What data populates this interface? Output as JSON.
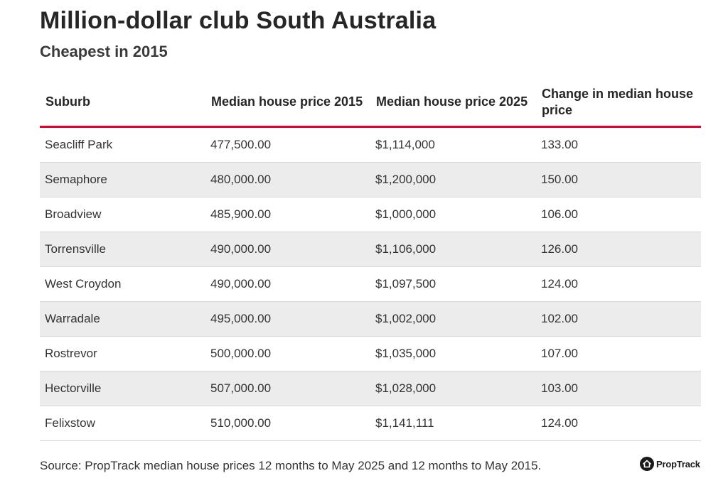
{
  "header": {
    "title": "Million-dollar club South Australia",
    "subtitle": "Cheapest in 2015"
  },
  "table": {
    "columns": [
      "Suburb",
      "Median house price 2015",
      "Median house price 2025",
      "Change in median house price"
    ],
    "rows": [
      [
        "Seacliff Park",
        "477,500.00",
        "$1,114,000",
        "133.00"
      ],
      [
        "Semaphore",
        "480,000.00",
        "$1,200,000",
        "150.00"
      ],
      [
        "Broadview",
        "485,900.00",
        "$1,000,000",
        "106.00"
      ],
      [
        "Torrensville",
        "490,000.00",
        "$1,106,000",
        "126.00"
      ],
      [
        "West Croydon",
        "490,000.00",
        "$1,097,500",
        "124.00"
      ],
      [
        "Warradale",
        "495,000.00",
        "$1,002,000",
        "102.00"
      ],
      [
        "Rostrevor",
        "500,000.00",
        "$1,035,000",
        "107.00"
      ],
      [
        "Hectorville",
        "507,000.00",
        "$1,028,000",
        "103.00"
      ],
      [
        "Felixstow",
        "510,000.00",
        "$1,141,111",
        "124.00"
      ]
    ]
  },
  "footer": {
    "source": "Source: PropTrack median house prices 12 months to May 2025 and 12 months to May 2015.",
    "logo_text": "PropTrack",
    "logo_icon": "house-icon"
  },
  "colors": {
    "accent": "#e4002b",
    "row_alt": "#ececec"
  }
}
